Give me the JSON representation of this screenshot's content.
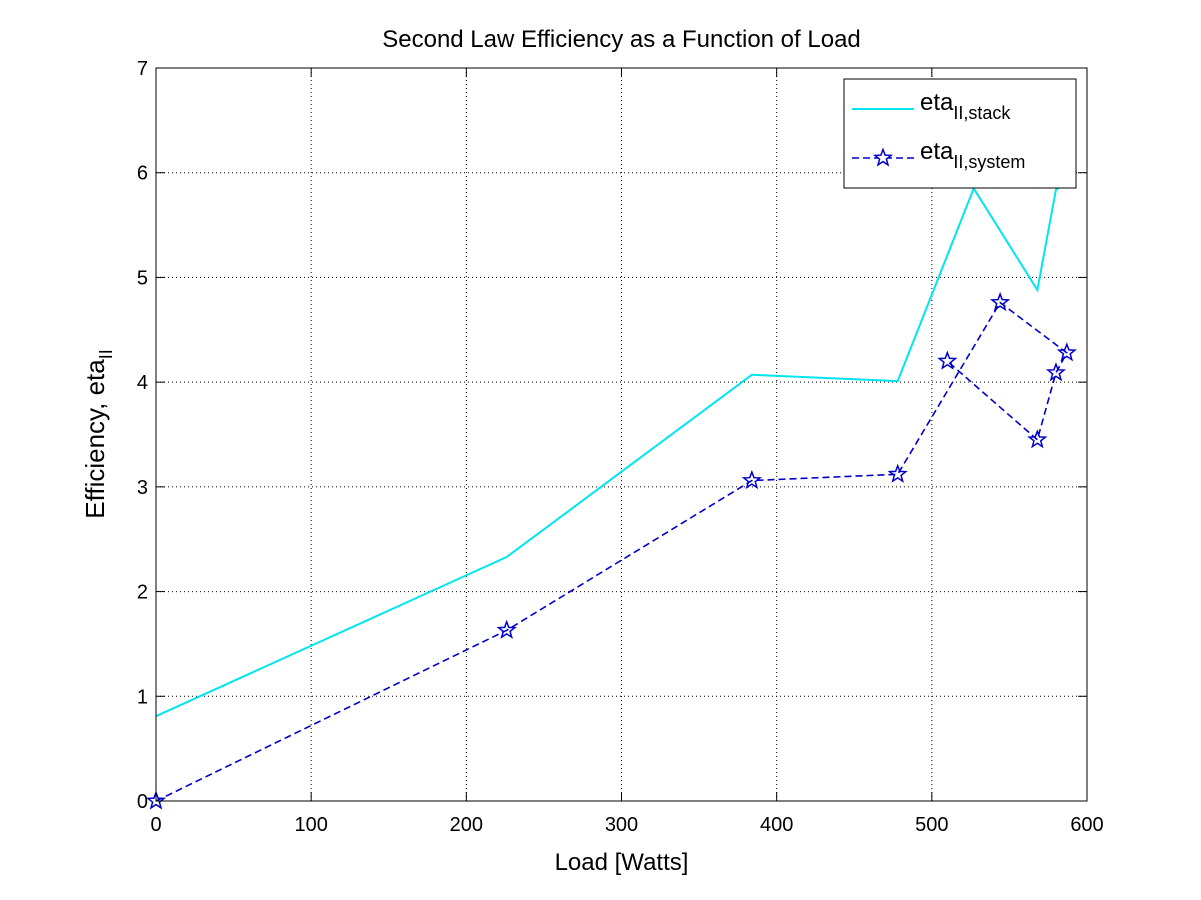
{
  "chart_data": {
    "type": "line",
    "title": "Second Law Efficiency as a Function of Load",
    "xlabel": "Load [Watts]",
    "ylabel": {
      "main": "Efficiency, eta",
      "subscript": "II"
    },
    "xlim": [
      0,
      600
    ],
    "ylim": [
      0,
      7
    ],
    "xticks": [
      "0",
      "100",
      "200",
      "300",
      "400",
      "500",
      "600"
    ],
    "yticks": [
      "0",
      "1",
      "2",
      "3",
      "4",
      "5",
      "6",
      "7"
    ],
    "grid": true,
    "legend_position": "top-right",
    "series": [
      {
        "name": {
          "main": "eta",
          "subscript": "II,stack"
        },
        "color": "#00e5ee",
        "line_style": "solid",
        "marker": "none",
        "x": [
          0,
          226,
          384,
          478,
          527,
          568,
          580,
          587
        ],
        "y": [
          0.81,
          2.33,
          4.07,
          4.01,
          5.85,
          4.88,
          5.84,
          5.9
        ]
      },
      {
        "name": {
          "main": "eta",
          "subscript": "II,system"
        },
        "color": "#0000cc",
        "line_style": "dashed",
        "marker": "star",
        "x": [
          0,
          226,
          384,
          478,
          544,
          587,
          580,
          568,
          510
        ],
        "y": [
          0,
          1.63,
          3.06,
          3.12,
          4.76,
          4.28,
          4.09,
          3.45,
          4.2
        ]
      }
    ]
  }
}
